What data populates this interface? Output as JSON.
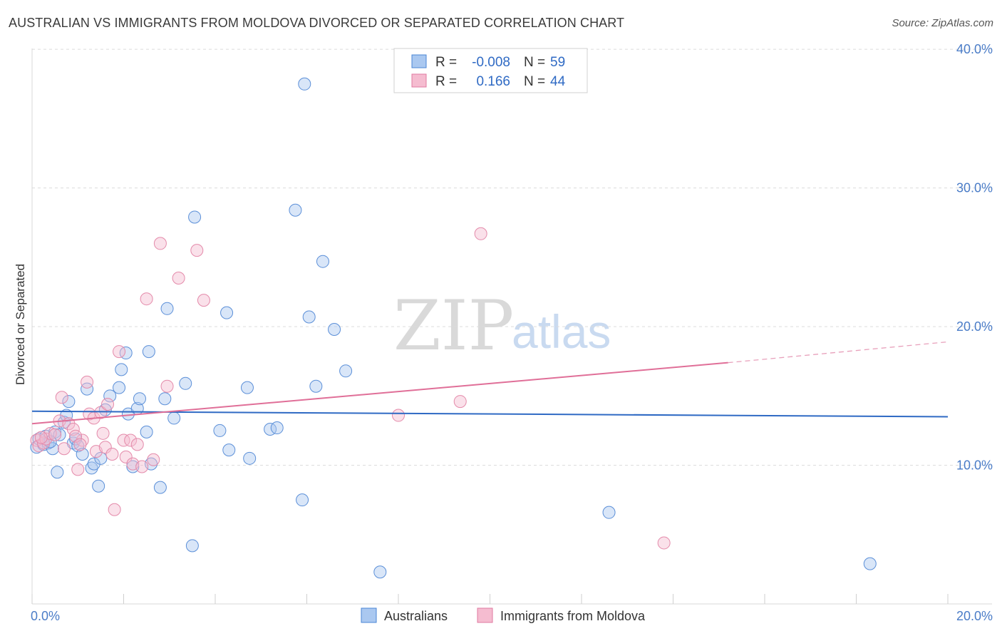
{
  "title": "AUSTRALIAN VS IMMIGRANTS FROM MOLDOVA DIVORCED OR SEPARATED CORRELATION CHART",
  "source": "Source: ZipAtlas.com",
  "watermark": {
    "zip": "ZIP",
    "atlas": "atlas"
  },
  "colors": {
    "blue": "#4a86d6",
    "blue_fill": "#aac8f0",
    "pink": "#e07aa0",
    "pink_fill": "#f5bcd0",
    "axis_text": "#4a7cc7"
  },
  "legend": {
    "r_label": "R =",
    "n_label": "N =",
    "rows": [
      {
        "r": "-0.008",
        "n": "59"
      },
      {
        "r": "0.166",
        "n": "44"
      }
    ]
  },
  "chart_data": {
    "type": "scatter",
    "ylabel": "Divorced or Separated",
    "xlim": [
      0,
      20
    ],
    "ylim": [
      0,
      41.5
    ],
    "x_tick_labels": [
      {
        "v": 0,
        "label": "0.0%"
      },
      {
        "v": 20,
        "label": "20.0%"
      }
    ],
    "y_tick_labels": [
      {
        "v": 10,
        "label": "10.0%"
      },
      {
        "v": 20,
        "label": "20.0%"
      },
      {
        "v": 30,
        "label": "30.0%"
      },
      {
        "v": 40,
        "label": "40.0%"
      }
    ],
    "series": [
      {
        "name": "Australians",
        "trend": {
          "x0": 0,
          "y0": 13.9,
          "x1": 20,
          "y1": 13.5
        },
        "points": [
          [
            0.1,
            11.3
          ],
          [
            0.15,
            11.9
          ],
          [
            0.25,
            11.5
          ],
          [
            0.3,
            12.1
          ],
          [
            0.35,
            11.6
          ],
          [
            0.45,
            11.2
          ],
          [
            0.5,
            12.4
          ],
          [
            0.55,
            9.5
          ],
          [
            0.6,
            12.2
          ],
          [
            0.7,
            13.1
          ],
          [
            0.75,
            13.6
          ],
          [
            0.8,
            14.6
          ],
          [
            0.9,
            11.6
          ],
          [
            0.95,
            11.9
          ],
          [
            1.0,
            11.4
          ],
          [
            1.1,
            10.8
          ],
          [
            1.2,
            15.5
          ],
          [
            1.3,
            9.8
          ],
          [
            1.35,
            10.1
          ],
          [
            1.45,
            8.5
          ],
          [
            1.5,
            10.5
          ],
          [
            1.6,
            14.0
          ],
          [
            1.7,
            15.0
          ],
          [
            1.9,
            15.6
          ],
          [
            1.95,
            16.9
          ],
          [
            2.05,
            18.1
          ],
          [
            2.1,
            13.7
          ],
          [
            2.2,
            9.9
          ],
          [
            2.3,
            14.1
          ],
          [
            2.35,
            14.8
          ],
          [
            2.5,
            12.4
          ],
          [
            2.55,
            18.2
          ],
          [
            2.6,
            10.1
          ],
          [
            2.8,
            8.4
          ],
          [
            2.9,
            14.8
          ],
          [
            2.95,
            21.3
          ],
          [
            3.1,
            13.4
          ],
          [
            3.35,
            15.9
          ],
          [
            3.5,
            4.2
          ],
          [
            3.55,
            27.9
          ],
          [
            4.1,
            12.5
          ],
          [
            4.25,
            21.0
          ],
          [
            4.3,
            11.1
          ],
          [
            4.7,
            15.6
          ],
          [
            4.75,
            10.5
          ],
          [
            5.2,
            12.6
          ],
          [
            5.35,
            12.7
          ],
          [
            5.75,
            28.4
          ],
          [
            5.9,
            7.5
          ],
          [
            5.95,
            37.5
          ],
          [
            6.05,
            20.7
          ],
          [
            6.2,
            15.7
          ],
          [
            6.35,
            24.7
          ],
          [
            6.6,
            19.8
          ],
          [
            6.85,
            16.8
          ],
          [
            7.6,
            2.3
          ],
          [
            12.6,
            6.6
          ],
          [
            18.3,
            2.9
          ],
          [
            0.4,
            11.7
          ]
        ]
      },
      {
        "name": "Immigrants from Moldova",
        "trend": {
          "x0": 0,
          "y0": 13.0,
          "x1": 15.2,
          "y1": 17.4
        },
        "trend_dashed": {
          "x0": 15.2,
          "y0": 17.4,
          "x1": 20,
          "y1": 18.9
        },
        "points": [
          [
            0.1,
            11.8
          ],
          [
            0.15,
            11.4
          ],
          [
            0.25,
            11.6
          ],
          [
            0.3,
            11.9
          ],
          [
            0.4,
            12.3
          ],
          [
            0.5,
            12.2
          ],
          [
            0.6,
            13.2
          ],
          [
            0.65,
            14.9
          ],
          [
            0.7,
            11.2
          ],
          [
            0.8,
            13.0
          ],
          [
            0.9,
            12.6
          ],
          [
            1.0,
            9.7
          ],
          [
            1.1,
            11.8
          ],
          [
            1.2,
            16.0
          ],
          [
            1.25,
            13.7
          ],
          [
            1.35,
            13.4
          ],
          [
            1.4,
            11.0
          ],
          [
            1.5,
            13.8
          ],
          [
            1.6,
            11.3
          ],
          [
            1.65,
            14.4
          ],
          [
            1.75,
            10.8
          ],
          [
            1.8,
            6.8
          ],
          [
            1.9,
            18.2
          ],
          [
            2.0,
            11.8
          ],
          [
            2.05,
            10.6
          ],
          [
            2.15,
            11.8
          ],
          [
            2.2,
            10.1
          ],
          [
            2.3,
            11.5
          ],
          [
            2.4,
            9.9
          ],
          [
            2.5,
            22.0
          ],
          [
            2.65,
            10.4
          ],
          [
            2.8,
            26.0
          ],
          [
            2.95,
            15.7
          ],
          [
            3.2,
            23.5
          ],
          [
            3.6,
            25.5
          ],
          [
            3.75,
            21.9
          ],
          [
            1.55,
            12.3
          ],
          [
            0.95,
            12.1
          ],
          [
            1.05,
            11.5
          ],
          [
            8.0,
            13.6
          ],
          [
            9.35,
            14.6
          ],
          [
            9.8,
            26.7
          ],
          [
            13.8,
            4.4
          ],
          [
            0.2,
            12.0
          ]
        ]
      }
    ]
  },
  "bottom_legend": [
    "Australians",
    "Immigrants from Moldova"
  ]
}
